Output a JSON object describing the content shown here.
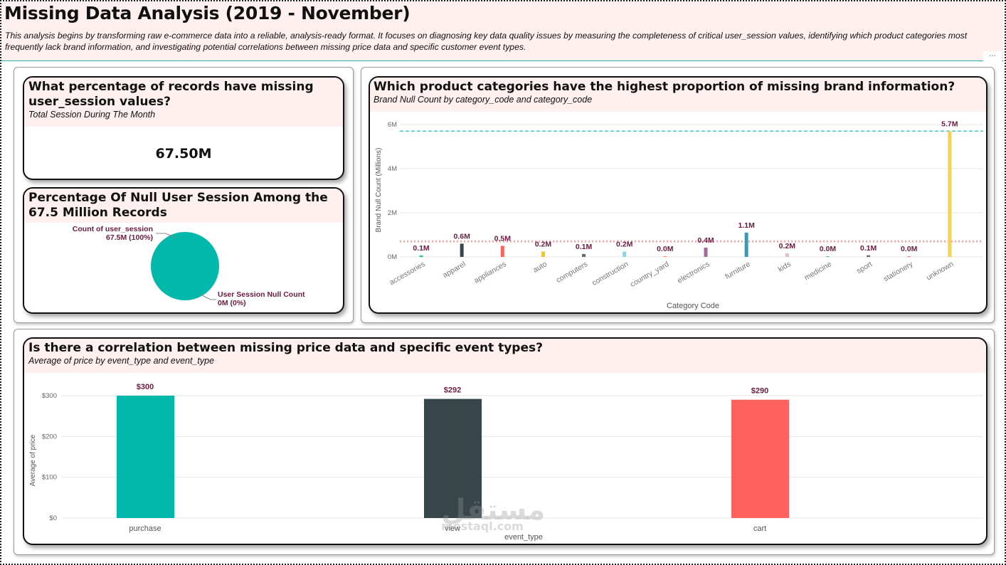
{
  "header": {
    "title": "Missing Data Analysis (2019 - November)",
    "description": "This analysis begins by transforming raw e-commerce data into a reliable, analysis-ready format. It focuses on diagnosing key data quality issues by measuring the completeness of critical user_session values, identifying which product categories most frequently lack brand information, and investigating potential correlations between missing price data and specific customer event types.",
    "more_label": "..."
  },
  "kpi_card": {
    "title": "What percentage of records have missing user_session values?",
    "subtitle": "Total Session During The Month",
    "value": "67.50M"
  },
  "pie_card": {
    "title": "Percentage Of Null User Session Among the 67.5 Million Records",
    "slices": [
      {
        "name": "Count of user_session",
        "detail": "67.5M (100%)",
        "value": 67.5,
        "color": "#01b8aa"
      },
      {
        "name": "User Session Null Count",
        "detail": "0M (0%)",
        "value": 0,
        "color": "#374649"
      }
    ]
  },
  "watermark": {
    "arabic": "مستقل",
    "latin": "mostaql.com"
  },
  "chart_data": [
    {
      "type": "bar",
      "title": "Which product categories have the highest proportion of missing brand information?",
      "subtitle": "Brand Null Count by category_code and category_code",
      "xlabel": "Category Code",
      "ylabel": "Brand Null Count (Millions)",
      "ylim": [
        0,
        6
      ],
      "yticks": [
        {
          "v": 0,
          "label": "0M"
        },
        {
          "v": 2,
          "label": "2M"
        },
        {
          "v": 4,
          "label": "4M"
        },
        {
          "v": 6,
          "label": "6M"
        }
      ],
      "categories": [
        "accessories",
        "apparel",
        "appliances",
        "auto",
        "computers",
        "construction",
        "country_yard",
        "electronics",
        "furniture",
        "kids",
        "medicine",
        "sport",
        "stationery",
        "unknown"
      ],
      "values": [
        0.06,
        0.6,
        0.5,
        0.24,
        0.13,
        0.24,
        0.02,
        0.42,
        1.1,
        0.16,
        0.03,
        0.07,
        0.02,
        5.7
      ],
      "labels": [
        "0.1M",
        "0.6M",
        "0.5M",
        "0.2M",
        "0.1M",
        "0.2M",
        "0.0M",
        "0.4M",
        "1.1M",
        "0.2M",
        "0.0M",
        "0.1M",
        "0.0M",
        "5.7M"
      ],
      "colors": [
        "#01b8aa",
        "#374649",
        "#fd625e",
        "#f2c80f",
        "#5f6b6d",
        "#8ad4eb",
        "#fe9666",
        "#a66999",
        "#3599b8",
        "#dfbfbf",
        "#4ac5bb",
        "#5f6b6d",
        "#fb8281",
        "#f4d25a"
      ],
      "max_line": 5.7,
      "avg_line": 0.7
    },
    {
      "type": "bar",
      "title": "Is there a correlation between missing price data and specific event types?",
      "subtitle": "Average of price by event_type and event_type",
      "xlabel": "event_type",
      "ylabel": "Average of price",
      "ylim": [
        0,
        300
      ],
      "yticks": [
        {
          "v": 0,
          "label": "$0"
        },
        {
          "v": 100,
          "label": "$100"
        },
        {
          "v": 200,
          "label": "$200"
        },
        {
          "v": 300,
          "label": "$300"
        }
      ],
      "categories": [
        "purchase",
        "view",
        "cart"
      ],
      "values": [
        300,
        292,
        290
      ],
      "labels": [
        "$300",
        "$292",
        "$290"
      ],
      "colors": [
        "#01b8aa",
        "#374649",
        "#fd625e"
      ]
    }
  ]
}
